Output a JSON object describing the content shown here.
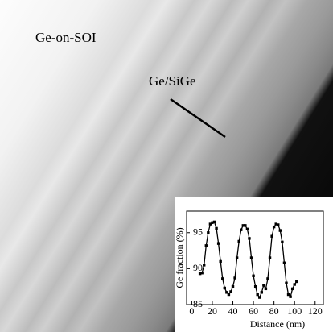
{
  "labels": {
    "sample": "Ge-on-SOI",
    "layer": "Ge/SiGe"
  },
  "chart_data": {
    "type": "line",
    "xlabel": "Distance (nm)",
    "ylabel": "Ge fraction (%)",
    "x": [
      8,
      10,
      12,
      14,
      16,
      18,
      20,
      22,
      24,
      26,
      28,
      30,
      32,
      34,
      36,
      38,
      40,
      42,
      44,
      46,
      48,
      50,
      52,
      54,
      56,
      58,
      60,
      62,
      64,
      66,
      68,
      70,
      72,
      74,
      76,
      78,
      80,
      82,
      84,
      86,
      88,
      90,
      92,
      94,
      96,
      98,
      100,
      102
    ],
    "y": [
      89.3,
      89.4,
      90.5,
      93.2,
      95,
      96.2,
      96.4,
      96.5,
      95.6,
      93.5,
      91,
      88.6,
      87.3,
      86.7,
      86.4,
      86.8,
      87.5,
      88.7,
      91.5,
      93.8,
      95.4,
      96,
      96,
      95.5,
      94.2,
      91.5,
      89,
      87.5,
      86.4,
      86,
      86.7,
      87.7,
      87.2,
      88.6,
      91.5,
      94.5,
      95.8,
      96.2,
      96.1,
      95.3,
      93.7,
      90.8,
      88,
      86.4,
      86.1,
      87.2,
      87.8,
      88.2
    ],
    "color": "#000000",
    "xlim": [
      -5,
      128
    ],
    "ylim": [
      85,
      98
    ],
    "xticks": [
      0,
      20,
      40,
      60,
      80,
      100,
      120
    ],
    "yticks": [
      85,
      90,
      95
    ]
  }
}
